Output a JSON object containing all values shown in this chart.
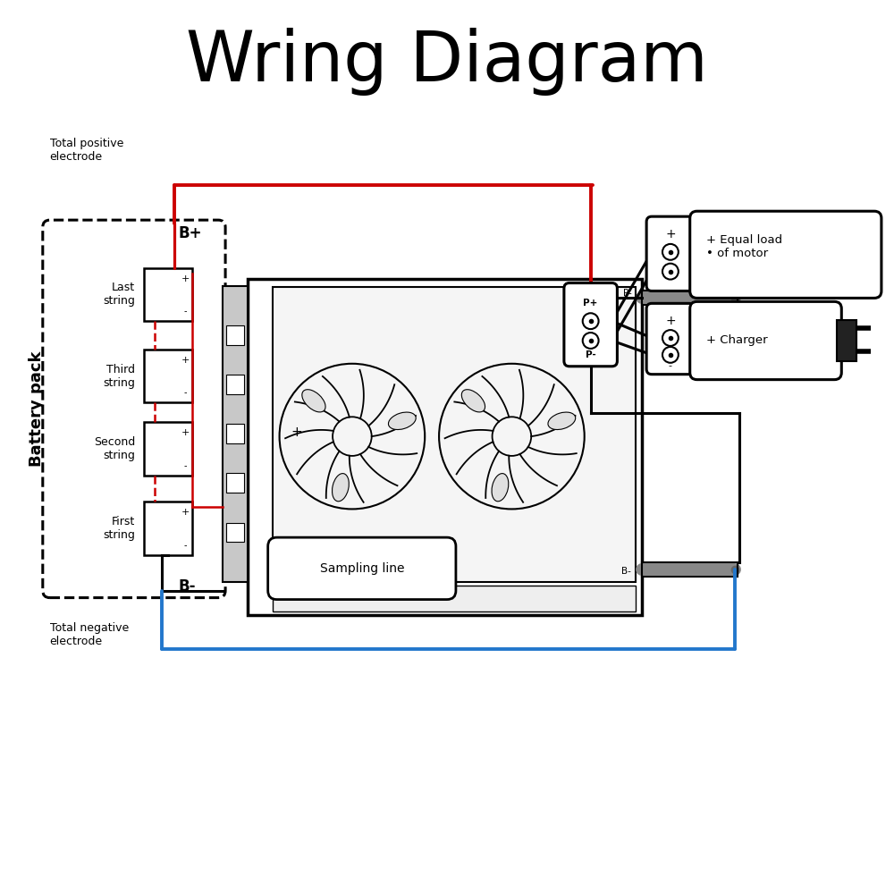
{
  "title": "Wring Diagram",
  "title_fontsize": 56,
  "bg_color": "#ffffff",
  "line_color": "#000000",
  "red_color": "#cc0000",
  "blue_color": "#2277cc",
  "battery_pack_label": "Battery pack",
  "b_plus_label": "B+",
  "b_minus_label": "B-",
  "total_pos_label": "Total positive\nelectrode",
  "total_neg_label": "Total negative\nelectrode",
  "strings": [
    "Last\nstring",
    "Third\nstring",
    "Second\nstring",
    "First\nstring"
  ],
  "sampling_label": "Sampling line",
  "load_label": "+ Equal load\n• of motor",
  "charger_label": "+ Charger",
  "p_plus_label": "P+",
  "p_minus_label": "P-"
}
